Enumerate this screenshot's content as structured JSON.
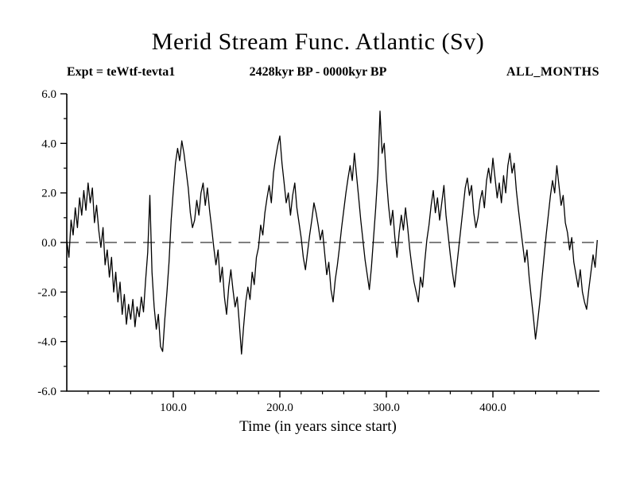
{
  "page": {
    "title": "Merid Stream Func. Atlantic (Sv)",
    "subtitle_left": "Expt = teWtf-tevta1",
    "subtitle_center": "2428kyr BP - 0000kyr BP",
    "subtitle_right": "ALL_MONTHS"
  },
  "chart_data": {
    "type": "line",
    "title": "Merid Stream Func. Atlantic (Sv)",
    "subtitle": "2428kyr BP - 0000kyr BP",
    "experiment": "Expt = teWtf-tevta1",
    "months": "ALL_MONTHS",
    "xlabel": "Time (in years since start)",
    "ylabel": "",
    "xlim": [
      0,
      500
    ],
    "ylim": [
      -6.0,
      6.0
    ],
    "xticks": [
      100,
      200,
      300,
      400
    ],
    "xtick_labels": [
      "100.0",
      "200.0",
      "300.0",
      "400.0"
    ],
    "yticks": [
      6,
      4,
      2,
      0,
      -2,
      -4,
      -6
    ],
    "ytick_labels": [
      "6.0",
      "4.0",
      "2.0",
      "0.0",
      "-2.0",
      "-4.0",
      "-6.0"
    ],
    "x_minor_step": 20,
    "y_minor_step": 1,
    "grid": false,
    "legend": null,
    "zero_line_dashed": true,
    "line_color": "#000000",
    "background": "#ffffff",
    "series": [
      {
        "name": "Merid Stream Func. Atlantic",
        "x_start": 0,
        "x_step": 2,
        "y": [
          0.1,
          -0.6,
          0.9,
          0.3,
          1.4,
          0.6,
          1.8,
          1.1,
          2.1,
          1.3,
          2.4,
          1.6,
          2.2,
          0.8,
          1.5,
          0.5,
          -0.2,
          0.6,
          -0.9,
          -0.3,
          -1.4,
          -0.6,
          -2.0,
          -1.2,
          -2.4,
          -1.6,
          -2.9,
          -2.1,
          -3.3,
          -2.5,
          -3.1,
          -2.3,
          -3.4,
          -2.6,
          -3.0,
          -2.2,
          -2.8,
          -1.5,
          -0.4,
          1.9,
          -1.2,
          -2.6,
          -3.5,
          -2.9,
          -4.2,
          -4.4,
          -3.1,
          -2.0,
          -0.8,
          0.9,
          2.1,
          3.2,
          3.8,
          3.3,
          4.1,
          3.6,
          2.9,
          2.2,
          1.2,
          0.6,
          0.9,
          1.7,
          1.1,
          2.0,
          2.4,
          1.5,
          2.2,
          1.3,
          0.6,
          -0.2,
          -0.9,
          -0.3,
          -1.6,
          -1.0,
          -2.2,
          -2.9,
          -1.8,
          -1.1,
          -1.9,
          -2.6,
          -2.2,
          -3.3,
          -4.5,
          -3.4,
          -2.4,
          -1.8,
          -2.3,
          -1.2,
          -1.7,
          -0.6,
          -0.2,
          0.7,
          0.3,
          1.2,
          1.8,
          2.3,
          1.6,
          2.8,
          3.4,
          3.9,
          4.3,
          3.2,
          2.4,
          1.6,
          2.0,
          1.1,
          1.9,
          2.4,
          1.4,
          0.8,
          0.2,
          -0.6,
          -1.1,
          -0.4,
          0.3,
          0.9,
          1.6,
          1.2,
          0.7,
          0.1,
          0.5,
          -0.4,
          -1.3,
          -0.8,
          -1.9,
          -2.4,
          -1.5,
          -0.9,
          -0.2,
          0.6,
          1.3,
          2.0,
          2.6,
          3.1,
          2.5,
          3.6,
          2.7,
          1.8,
          0.9,
          0.1,
          -0.7,
          -1.3,
          -1.9,
          -1.0,
          0.2,
          1.4,
          2.8,
          5.3,
          3.6,
          4.0,
          2.6,
          1.5,
          0.7,
          1.3,
          0.2,
          -0.6,
          0.4,
          1.1,
          0.5,
          1.4,
          0.6,
          -0.3,
          -1.0,
          -1.6,
          -2.0,
          -2.4,
          -1.4,
          -1.8,
          -0.8,
          0.1,
          0.7,
          1.5,
          2.1,
          1.2,
          1.8,
          0.9,
          1.6,
          2.3,
          1.1,
          0.3,
          -0.5,
          -1.2,
          -1.8,
          -1.0,
          -0.2,
          0.6,
          1.4,
          2.2,
          2.6,
          1.9,
          2.3,
          1.2,
          0.6,
          1.0,
          1.7,
          2.1,
          1.4,
          2.5,
          3.0,
          2.4,
          3.4,
          2.6,
          1.8,
          2.4,
          1.6,
          2.7,
          2.0,
          3.1,
          3.6,
          2.8,
          3.2,
          2.1,
          1.3,
          0.6,
          -0.1,
          -0.8,
          -0.3,
          -1.4,
          -2.2,
          -3.0,
          -3.9,
          -3.2,
          -2.4,
          -1.5,
          -0.6,
          0.3,
          1.1,
          1.9,
          2.5,
          2.0,
          3.1,
          2.3,
          1.5,
          1.9,
          0.8,
          0.4,
          -0.3,
          0.2,
          -0.8,
          -1.3,
          -1.8,
          -1.1,
          -2.0,
          -2.4,
          -2.7,
          -1.9,
          -1.2,
          -0.5,
          -1.0,
          0.1
        ]
      }
    ]
  }
}
